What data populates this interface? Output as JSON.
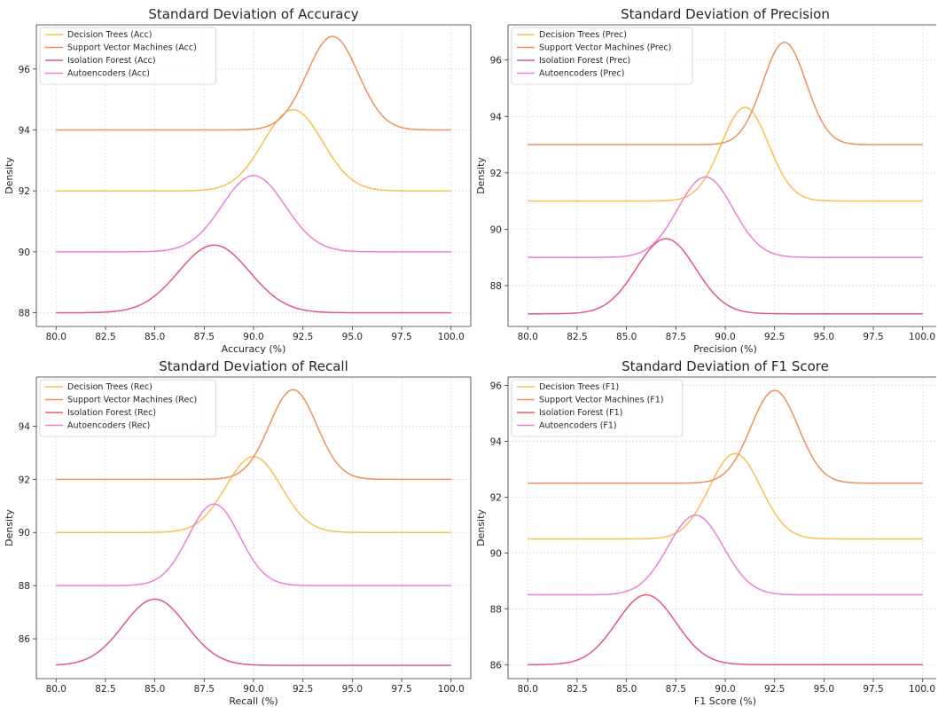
{
  "colors": {
    "decision_trees": "#f7c04f",
    "svm": "#ef8f5a",
    "isolation_forest": "#e05a78",
    "autoencoders": "#ec7fd6"
  },
  "chart_data": [
    {
      "type": "line",
      "title": "Standard Deviation of Accuracy",
      "xlabel": "Accuracy (%)",
      "ylabel": "Density",
      "xlim": [
        79,
        101
      ],
      "ylim": [
        87.55,
        97.45
      ],
      "xticks": [
        "80.0",
        "82.5",
        "85.0",
        "87.5",
        "90.0",
        "92.5",
        "95.0",
        "97.5",
        "100.0"
      ],
      "yticks": [
        "88",
        "90",
        "92",
        "94",
        "96"
      ],
      "grid": true,
      "legend_position": "top-left",
      "series": [
        {
          "name": "Decision Trees (Acc)",
          "color_key": "decision_trees",
          "mean": 92,
          "sd": 1.5,
          "baseline": 92,
          "peak": 94.66
        },
        {
          "name": "Support Vector Machines (Acc)",
          "color_key": "svm",
          "mean": 94,
          "sd": 1.3,
          "baseline": 94,
          "peak": 97.07
        },
        {
          "name": "Isolation Forest (Acc)",
          "color_key": "isolation_forest",
          "mean": 88,
          "sd": 1.8,
          "baseline": 88,
          "peak": 90.22
        },
        {
          "name": "Autoencoders (Acc)",
          "color_key": "autoencoders",
          "mean": 90,
          "sd": 1.6,
          "baseline": 90,
          "peak": 92.5
        }
      ]
    },
    {
      "type": "line",
      "title": "Standard Deviation of Precision",
      "xlabel": "Precision (%)",
      "ylabel": "Density",
      "xlim": [
        79,
        101
      ],
      "ylim": [
        86.55,
        97.25
      ],
      "xticks": [
        "80.0",
        "82.5",
        "85.0",
        "87.5",
        "90.0",
        "92.5",
        "95.0",
        "97.5",
        "100.0"
      ],
      "yticks": [
        "88",
        "90",
        "92",
        "94",
        "96"
      ],
      "grid": true,
      "legend_position": "top-left",
      "series": [
        {
          "name": "Decision Trees (Prec)",
          "color_key": "decision_trees",
          "mean": 91,
          "sd": 1.2,
          "baseline": 91,
          "peak": 94.32
        },
        {
          "name": "Support Vector Machines (Prec)",
          "color_key": "svm",
          "mean": 93,
          "sd": 1.1,
          "baseline": 93,
          "peak": 96.63
        },
        {
          "name": "Isolation Forest (Prec)",
          "color_key": "isolation_forest",
          "mean": 87,
          "sd": 1.5,
          "baseline": 87,
          "peak": 89.66
        },
        {
          "name": "Autoencoders (Prec)",
          "color_key": "autoencoders",
          "mean": 89,
          "sd": 1.4,
          "baseline": 89,
          "peak": 91.85
        }
      ]
    },
    {
      "type": "line",
      "title": "Standard Deviation of Recall",
      "xlabel": "Recall (%)",
      "ylabel": "Density",
      "xlim": [
        79,
        101
      ],
      "ylim": [
        84.5,
        95.85
      ],
      "xticks": [
        "80.0",
        "82.5",
        "85.0",
        "87.5",
        "90.0",
        "92.5",
        "95.0",
        "97.5",
        "100.0"
      ],
      "yticks": [
        "86",
        "88",
        "90",
        "92",
        "94"
      ],
      "grid": true,
      "legend_position": "top-left",
      "series": [
        {
          "name": "Decision Trees (Rec)",
          "color_key": "decision_trees",
          "mean": 90,
          "sd": 1.4,
          "baseline": 90,
          "peak": 92.85
        },
        {
          "name": "Support Vector Machines (Rec)",
          "color_key": "svm",
          "mean": 92,
          "sd": 1.2,
          "baseline": 92,
          "peak": 95.37
        },
        {
          "name": "Isolation Forest (Rec)",
          "color_key": "isolation_forest",
          "mean": 85,
          "sd": 1.6,
          "baseline": 85,
          "peak": 87.49
        },
        {
          "name": "Autoencoders (Rec)",
          "color_key": "autoencoders",
          "mean": 88,
          "sd": 1.3,
          "baseline": 88,
          "peak": 91.07
        }
      ]
    },
    {
      "type": "line",
      "title": "Standard Deviation of F1 Score",
      "xlabel": "F1 Score (%)",
      "ylabel": "Density",
      "xlim": [
        79,
        101
      ],
      "ylim": [
        85.5,
        96.3
      ],
      "xticks": [
        "80.0",
        "82.5",
        "85.0",
        "87.5",
        "90.0",
        "92.5",
        "95.0",
        "97.5",
        "100.0"
      ],
      "yticks": [
        "86",
        "88",
        "90",
        "92",
        "94",
        "96"
      ],
      "grid": true,
      "legend_position": "top-left",
      "series": [
        {
          "name": "Decision Trees (F1)",
          "color_key": "decision_trees",
          "mean": 90.5,
          "sd": 1.3,
          "baseline": 90.5,
          "peak": 93.56
        },
        {
          "name": "Support Vector Machines (F1)",
          "color_key": "svm",
          "mean": 92.5,
          "sd": 1.2,
          "baseline": 92.5,
          "peak": 95.82
        },
        {
          "name": "Isolation Forest (F1)",
          "color_key": "isolation_forest",
          "mean": 86,
          "sd": 1.5,
          "baseline": 86,
          "peak": 88.5
        },
        {
          "name": "Autoencoders (F1)",
          "color_key": "autoencoders",
          "mean": 88.5,
          "sd": 1.4,
          "baseline": 88.5,
          "peak": 91.35
        }
      ]
    }
  ]
}
